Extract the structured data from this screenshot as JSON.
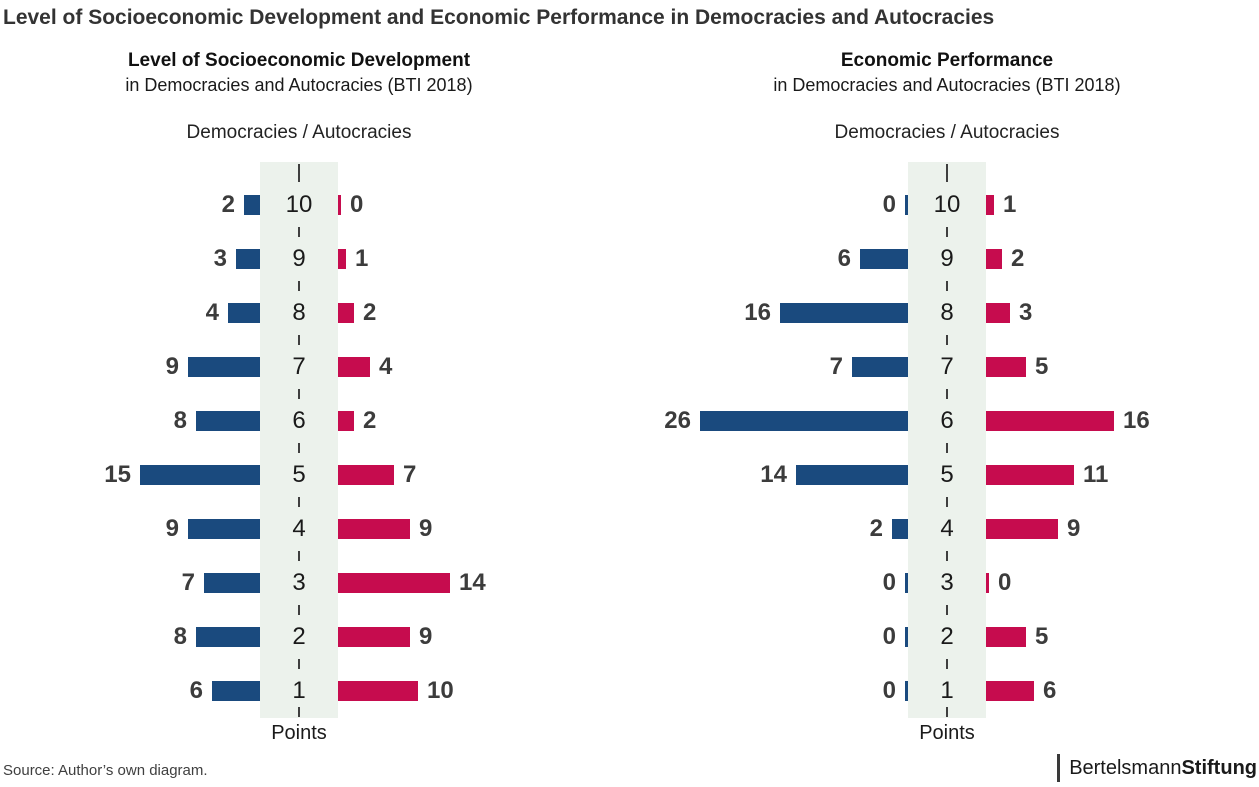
{
  "header": {
    "title": "Level of Socioeconomic Development and Economic Performance in Democracies and Autocracies"
  },
  "footer": {
    "source": "Source: Author’s own diagram.",
    "brand_regular": "Bertelsmann",
    "brand_bold": "Stiftung"
  },
  "colors": {
    "democracies_bar": "#1A4A7E",
    "autocracies_bar": "#C60C4E",
    "axis_band": "#ECF2EC",
    "tick": "#3F3F3F",
    "value_label": "#3C3C3C"
  },
  "chart_data": [
    {
      "type": "bar",
      "variant": "back-to-back-pyramid",
      "title": "Level of Socioeconomic Development",
      "subtitle": "in Democracies and Autocracies (BTI 2018)",
      "group_label": "Democracies / Autocracies",
      "axis_label": "Points",
      "axis_range": [
        1,
        10
      ],
      "categories": [
        10,
        9,
        8,
        7,
        6,
        5,
        4,
        3,
        2,
        1
      ],
      "series": [
        {
          "name": "Democracies",
          "side": "left",
          "color": "#1A4A7E",
          "values": [
            2,
            3,
            4,
            9,
            8,
            15,
            9,
            7,
            8,
            6
          ]
        },
        {
          "name": "Autocracies",
          "side": "right",
          "color": "#C60C4E",
          "values": [
            0,
            1,
            2,
            4,
            2,
            7,
            9,
            14,
            9,
            10
          ]
        }
      ]
    },
    {
      "type": "bar",
      "variant": "back-to-back-pyramid",
      "title": "Economic Performance",
      "subtitle": "in Democracies and Autocracies (BTI 2018)",
      "group_label": "Democracies / Autocracies",
      "axis_label": "Points",
      "axis_range": [
        1,
        10
      ],
      "categories": [
        10,
        9,
        8,
        7,
        6,
        5,
        4,
        3,
        2,
        1
      ],
      "series": [
        {
          "name": "Democracies",
          "side": "left",
          "color": "#1A4A7E",
          "values": [
            0,
            6,
            16,
            7,
            26,
            14,
            2,
            0,
            0,
            0
          ]
        },
        {
          "name": "Autocracies",
          "side": "right",
          "color": "#C60C4E",
          "values": [
            1,
            2,
            3,
            5,
            16,
            11,
            9,
            0,
            5,
            6
          ]
        }
      ]
    }
  ]
}
